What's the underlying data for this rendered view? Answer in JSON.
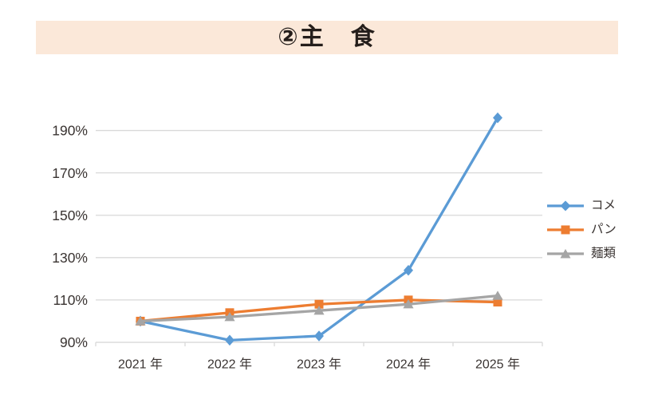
{
  "title": {
    "text": "②主　食"
  },
  "colors": {
    "banner_background": "#FBE8D9",
    "title_text": "#251e1b",
    "axis_text": "#3a3432",
    "gridline": "#D9D9D9",
    "series_rice": "#5B9BD5",
    "series_bread": "#ED7D31",
    "series_noodles": "#A5A5A5"
  },
  "chart_data": {
    "type": "line",
    "title": "②主　食",
    "xlabel": "",
    "ylabel": "",
    "categories": [
      "2021 年",
      "2022 年",
      "2023 年",
      "2024 年",
      "2025 年"
    ],
    "series": [
      {
        "name": "コメ",
        "values": [
          100,
          91,
          93,
          124,
          196
        ],
        "color": "#5B9BD5",
        "marker": "diamond"
      },
      {
        "name": "パン",
        "values": [
          100,
          104,
          108,
          110,
          109
        ],
        "color": "#ED7D31",
        "marker": "square"
      },
      {
        "name": "麺類",
        "values": [
          100,
          102,
          105,
          108,
          112
        ],
        "color": "#A5A5A5",
        "marker": "triangle"
      }
    ],
    "ylim": [
      90,
      200
    ],
    "yticks": [
      {
        "value": 90,
        "label": "90%"
      },
      {
        "value": 110,
        "label": "110%"
      },
      {
        "value": 130,
        "label": "130%"
      },
      {
        "value": 150,
        "label": "150%"
      },
      {
        "value": 170,
        "label": "170%"
      },
      {
        "value": 190,
        "label": "190%"
      }
    ],
    "grid": true,
    "legend_position": "right"
  }
}
